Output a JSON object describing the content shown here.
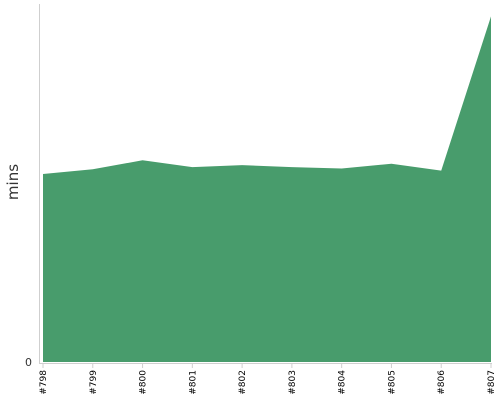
{
  "chart_data": {
    "type": "area",
    "title": "",
    "xlabel": "",
    "ylabel": "mins",
    "categories": [
      "#798",
      "#799",
      "#800",
      "#801",
      "#802",
      "#803",
      "#804",
      "#805",
      "#806",
      "#807"
    ],
    "values": [
      27.3,
      28.0,
      29.3,
      28.3,
      28.6,
      28.3,
      28.1,
      28.8,
      27.8,
      50.2
    ],
    "ylim": [
      0,
      52
    ],
    "y_ticks": [
      0
    ],
    "y_tick_labels": [
      "0"
    ],
    "grid": false,
    "legend": "none",
    "colors": {
      "fill": "#489c6c",
      "axis": "#cfcfcf",
      "tick_label": "#333333",
      "category_label": "#000000"
    }
  }
}
